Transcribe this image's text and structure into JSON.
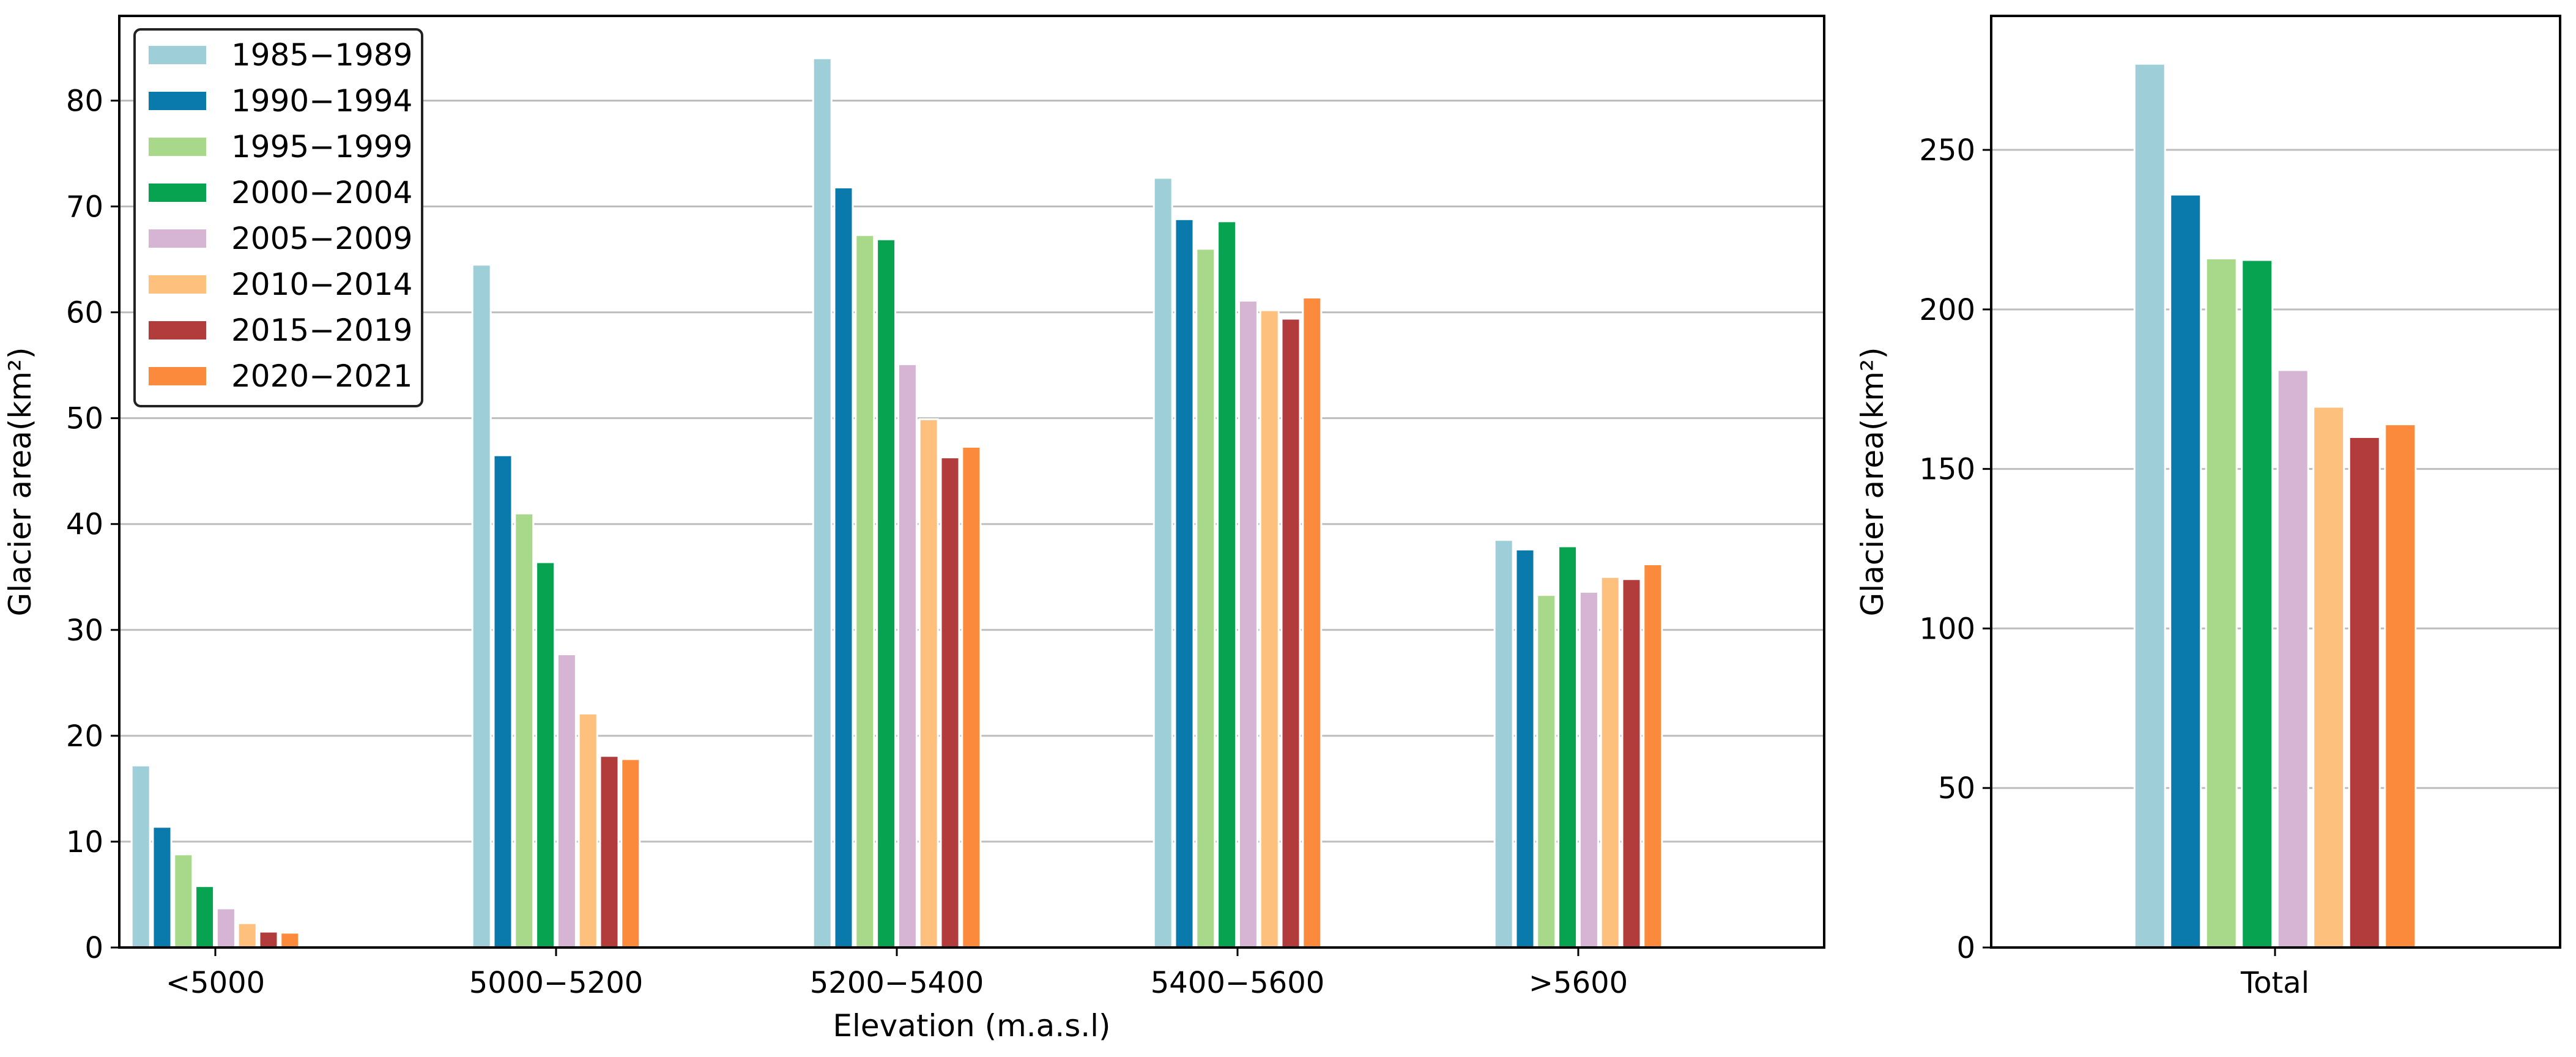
{
  "colors": {
    "1985-1989": "#9ecfd9",
    "1990-1994": "#0a7aac",
    "1995-1999": "#a8d88a",
    "2000-2004": "#07a351",
    "2005-2009": "#d5b5d3",
    "2010-2014": "#fec07d",
    "2015-2019": "#b23c3c",
    "2020-2021": "#fc8a3c",
    "gridline": "#bdbdbd",
    "axis": "#000000"
  },
  "chart_data": [
    {
      "type": "bar",
      "categories": [
        "<5000",
        "5000−5200",
        "5200−5400",
        "5400−5600",
        ">5600"
      ],
      "xlabel": "Elevation (m.a.s.l)",
      "ylabel": "Glacier area(km²)",
      "ylim": [
        0,
        88
      ],
      "yticks": [
        0,
        10,
        20,
        30,
        40,
        50,
        60,
        70,
        80
      ],
      "grid": "horizontal",
      "legend_position": "top-left",
      "series": [
        {
          "name": "1985−1989",
          "values": [
            17.2,
            64.5,
            84.0,
            72.7,
            38.5
          ]
        },
        {
          "name": "1990−1994",
          "values": [
            11.4,
            46.5,
            71.8,
            68.8,
            37.6
          ]
        },
        {
          "name": "1995−1999",
          "values": [
            8.8,
            41.0,
            67.3,
            66.0,
            33.3
          ]
        },
        {
          "name": "2000−2004",
          "values": [
            5.8,
            36.4,
            66.9,
            68.6,
            37.9
          ]
        },
        {
          "name": "2005−2009",
          "values": [
            3.7,
            27.7,
            55.1,
            61.1,
            33.6
          ]
        },
        {
          "name": "2010−2014",
          "values": [
            2.3,
            22.1,
            49.9,
            60.2,
            35.0
          ]
        },
        {
          "name": "2015−2019",
          "values": [
            1.5,
            18.1,
            46.3,
            59.4,
            34.8
          ]
        },
        {
          "name": "2020−2021",
          "values": [
            1.4,
            17.8,
            47.3,
            61.4,
            36.2
          ]
        }
      ]
    },
    {
      "type": "bar",
      "categories": [
        "Total"
      ],
      "xlabel": "",
      "ylabel": "Glacier area(km²)",
      "ylim": [
        0,
        292
      ],
      "yticks": [
        0,
        50,
        100,
        150,
        200,
        250
      ],
      "grid": "horizontal",
      "series": [
        {
          "name": "1985−1989",
          "values": [
            277
          ]
        },
        {
          "name": "1990−1994",
          "values": [
            236
          ]
        },
        {
          "name": "1995−1999",
          "values": [
            216
          ]
        },
        {
          "name": "2000−2004",
          "values": [
            215.5
          ]
        },
        {
          "name": "2005−2009",
          "values": [
            181
          ]
        },
        {
          "name": "2010−2014",
          "values": [
            169.5
          ]
        },
        {
          "name": "2015−2019",
          "values": [
            160
          ]
        },
        {
          "name": "2020−2021",
          "values": [
            164
          ]
        }
      ]
    }
  ]
}
